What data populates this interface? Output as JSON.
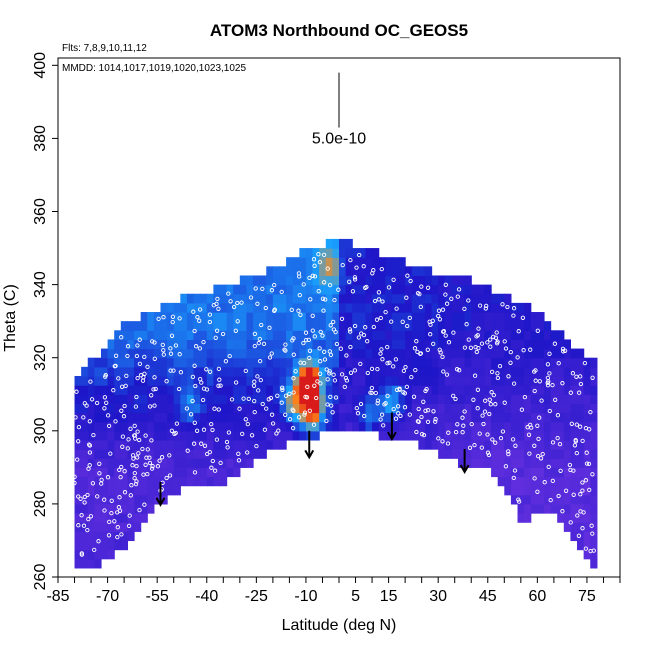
{
  "chart_data": {
    "type": "heatmap",
    "title": "ATOM3 Northbound OC_GEOS5",
    "annotations": {
      "flights": "Flts: 7,8,9,10,11,12",
      "mmdd": "MMDD: 1014,1017,1019,1020,1023,1025"
    },
    "xlabel": "Latitude (deg N)",
    "ylabel": "Theta (C)",
    "xlim": [
      -85,
      85
    ],
    "ylim": [
      260,
      402
    ],
    "x_ticks": [
      -85,
      -70,
      -55,
      -40,
      -25,
      -10,
      5,
      15,
      30,
      45,
      60,
      75
    ],
    "x_tick_labels": [
      "-85",
      "-70",
      "-55",
      "-40",
      "-25",
      "-10",
      "5",
      "15",
      "30",
      "45",
      "60",
      "75"
    ],
    "y_ticks": [
      260,
      280,
      300,
      320,
      340,
      360,
      380,
      400
    ],
    "y_tick_labels": [
      "260",
      "280",
      "300",
      "320",
      "340",
      "360",
      "380",
      "400"
    ],
    "scale_bar": {
      "label": "5.0e-10",
      "x": 0,
      "y_range": [
        383,
        398
      ]
    },
    "colors": {
      "low": "#7b38e6",
      "mid": "#1d16c8",
      "high": "#1aa6ff",
      "peak_orange": "#ff8a1a",
      "peak_red": "#d81a1a"
    },
    "envelope": {
      "lat": [
        -80,
        -75,
        -70,
        -65,
        -60,
        -55,
        -50,
        -45,
        -40,
        -35,
        -30,
        -25,
        -20,
        -15,
        -10,
        -5,
        0,
        5,
        10,
        15,
        20,
        25,
        30,
        35,
        40,
        45,
        50,
        55,
        60,
        65,
        70,
        75,
        78
      ],
      "theta_bottom": [
        262,
        262,
        265,
        268,
        275,
        280,
        283,
        285,
        286,
        286,
        288,
        292,
        295,
        297,
        298,
        299,
        300,
        301,
        299,
        298,
        297,
        296,
        294,
        292,
        289,
        290,
        285,
        275,
        278,
        278,
        272,
        264,
        262
      ],
      "theta_top": [
        312,
        318,
        323,
        328,
        330,
        332,
        334,
        336,
        337,
        338,
        340,
        341,
        343,
        346,
        349,
        350,
        351,
        350,
        348,
        346,
        345,
        344,
        342,
        341,
        340,
        338,
        336,
        334,
        331,
        327,
        323,
        320,
        318
      ]
    },
    "enhancements": [
      {
        "lat": -9,
        "theta": 313,
        "strength": 1.0
      },
      {
        "lat": -8,
        "theta": 305,
        "strength": 0.7
      },
      {
        "lat": -14,
        "theta": 308,
        "strength": 0.45
      },
      {
        "lat": 16,
        "theta": 308,
        "strength": 0.4
      },
      {
        "lat": 9,
        "theta": 304,
        "strength": 0.3
      },
      {
        "lat": -45,
        "theta": 307,
        "strength": 0.25
      },
      {
        "lat": -3,
        "theta": 345,
        "strength": 0.3
      }
    ],
    "profiles": [
      {
        "lat": -54,
        "theta_top": 286,
        "theta_bottom": 280
      },
      {
        "lat": -9,
        "theta_top": 300,
        "theta_bottom": 293
      },
      {
        "lat": 16,
        "theta_top": 305,
        "theta_bottom": 298
      },
      {
        "lat": 38,
        "theta_top": 295,
        "theta_bottom": 289
      }
    ]
  }
}
